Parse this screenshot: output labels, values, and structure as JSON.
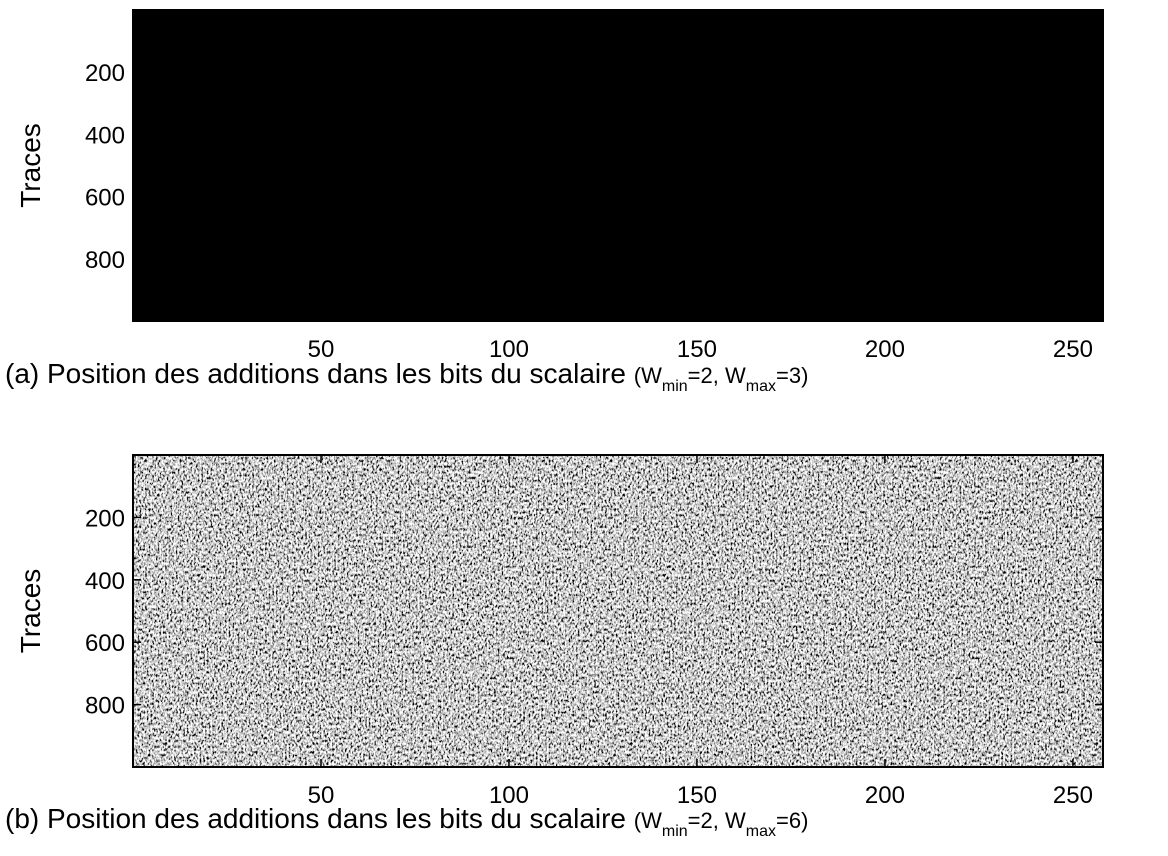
{
  "chart_data": [
    {
      "type": "heatmap",
      "ylabel": "Traces",
      "xlabel": "(a) Position des additions dans les bits du scalaire",
      "xlabel_params": [
        "(W",
        "min",
        "=2, W",
        "max",
        "=3)"
      ],
      "xlim": [
        0,
        258
      ],
      "xticks": [
        50,
        100,
        150,
        200,
        250
      ],
      "ylim": [
        0,
        1000
      ],
      "yticks": [
        200,
        400,
        600,
        800
      ],
      "y_reversed": true,
      "colormap": "gray"
    },
    {
      "type": "heatmap",
      "ylabel": "Traces",
      "xlabel": "(b) Position des additions dans les bits du scalaire",
      "xlabel_params": [
        "(W",
        "min",
        "=2, W",
        "max",
        "=6)"
      ],
      "xlim": [
        0,
        258
      ],
      "xticks": [
        50,
        100,
        150,
        200,
        250
      ],
      "ylim": [
        0,
        1000
      ],
      "yticks": [
        200,
        400,
        600,
        800
      ],
      "y_reversed": true,
      "colormap": "gray"
    }
  ]
}
